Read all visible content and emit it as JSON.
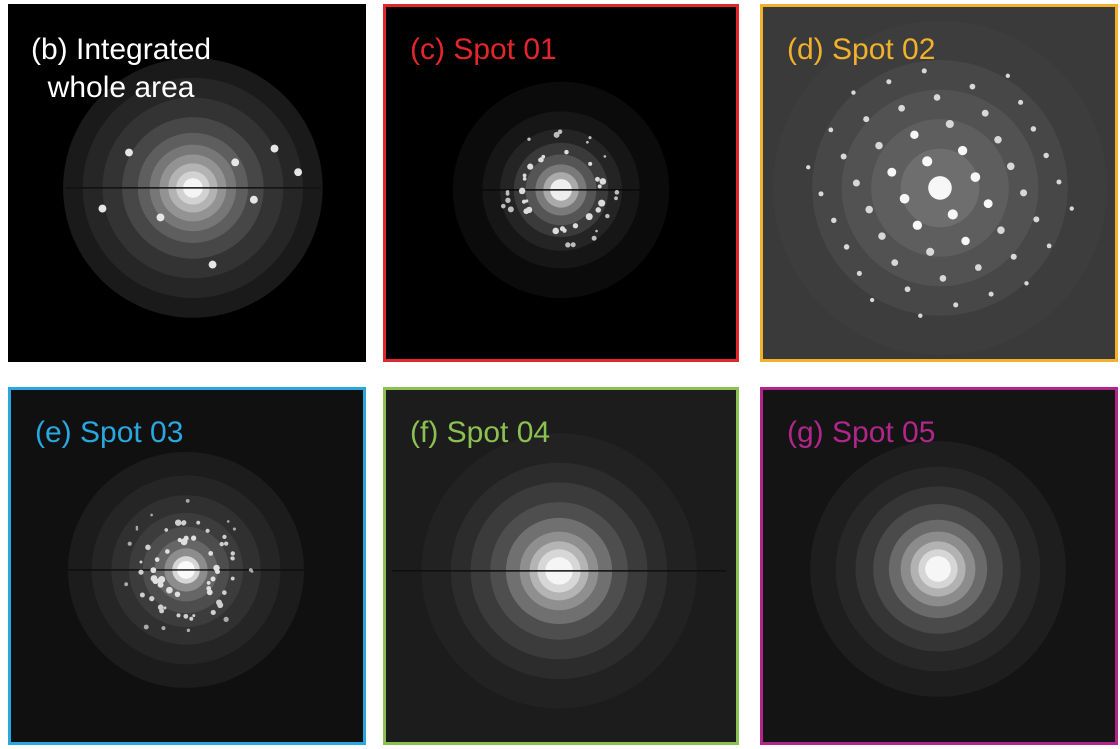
{
  "panels": [
    {
      "id": "b",
      "label": "(b) Integrated\nwhole area",
      "border_color": "#000000",
      "label_color": "#ffffff",
      "background": "#000000",
      "style": "rings-integrated"
    },
    {
      "id": "c",
      "label": "(c) Spot 01",
      "border_color": "#e3262c",
      "label_color": "#e3262c",
      "background": "#000000",
      "style": "ring-spots-dim"
    },
    {
      "id": "d",
      "label": "(d) Spot 02",
      "border_color": "#f2b12a",
      "label_color": "#f2b12a",
      "background": "#3a3a3a",
      "style": "single-crystal"
    },
    {
      "id": "e",
      "label": "(e) Spot 03",
      "border_color": "#2aa7df",
      "label_color": "#2aa7df",
      "background": "#101010",
      "style": "ring-spots-bright"
    },
    {
      "id": "f",
      "label": "(f) Spot 04",
      "border_color": "#8cc152",
      "label_color": "#8cc152",
      "background": "#1c1c1c",
      "style": "diffuse"
    },
    {
      "id": "g",
      "label": "(g) Spot 05",
      "border_color": "#b0268a",
      "label_color": "#b0268a",
      "background": "#141414",
      "style": "diffuse"
    }
  ]
}
